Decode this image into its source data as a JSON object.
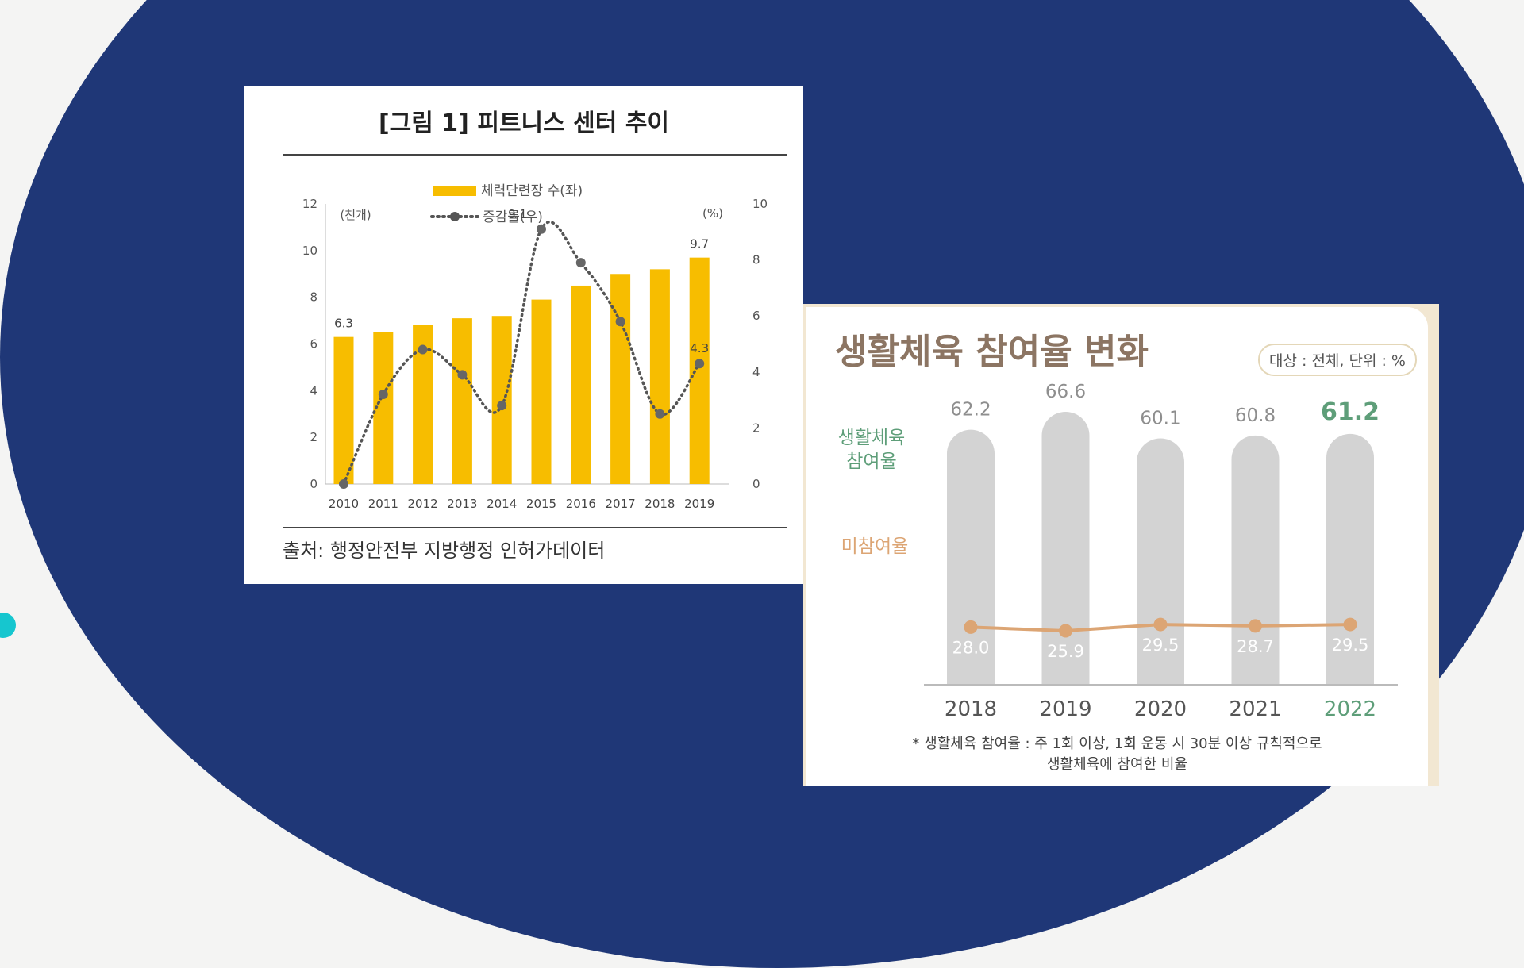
{
  "colors": {
    "background": "#f4f4f3",
    "ellipse": "#1f3777",
    "accent_dot": "#16c6cf",
    "bar_yellow": "#f7bd00",
    "line_dark": "#555555",
    "bar_gray": "#d3d3d3",
    "line_orange": "#dca574",
    "green": "#5e9e79",
    "title_brown": "#8c7563"
  },
  "chart_data": [
    {
      "type": "bar",
      "title": "[그림 1] 피트니스 센터 추이",
      "categories": [
        "2010",
        "2011",
        "2012",
        "2013",
        "2014",
        "2015",
        "2016",
        "2017",
        "2018",
        "2019"
      ],
      "series": [
        {
          "name": "체력단련장 수(좌)",
          "type": "bar",
          "axis": "left",
          "values": [
            6.3,
            6.5,
            6.8,
            7.1,
            7.2,
            7.9,
            8.5,
            9.0,
            9.2,
            9.7
          ]
        },
        {
          "name": "증감률(우)",
          "type": "line",
          "axis": "right",
          "values": [
            0,
            3.2,
            4.8,
            3.9,
            2.8,
            9.1,
            7.9,
            5.8,
            2.5,
            4.3
          ]
        }
      ],
      "data_labels": [
        {
          "series": 0,
          "index": 0,
          "text": "6.3"
        },
        {
          "series": 0,
          "index": 9,
          "text": "9.7"
        },
        {
          "series": 1,
          "index": 5,
          "text": "9.1"
        },
        {
          "series": 1,
          "index": 9,
          "text": "4.3"
        }
      ],
      "y_left": {
        "unit": "(천개)",
        "ticks": [
          "0",
          "2",
          "4",
          "6",
          "8",
          "10",
          "12"
        ],
        "range": [
          0,
          12
        ]
      },
      "y_right": {
        "unit": "(%)",
        "ticks": [
          "0",
          "2",
          "4",
          "6",
          "8",
          "10"
        ],
        "range": [
          0,
          10
        ]
      },
      "legend": "top-center",
      "source": "출처: 행정안전부 지방행정 인허가데이터"
    },
    {
      "type": "bar",
      "title": "생활체육 참여율 변화",
      "badge": "대상 : 전체, 단위 : %",
      "categories": [
        "2018",
        "2019",
        "2020",
        "2021",
        "2022"
      ],
      "highlight_index": 4,
      "series": [
        {
          "name": "생활체육 참여율",
          "type": "bar",
          "values": [
            62.2,
            66.6,
            60.1,
            60.8,
            61.2
          ]
        },
        {
          "name": "미참여율",
          "type": "line",
          "values": [
            28.0,
            25.9,
            29.5,
            28.7,
            29.5
          ]
        }
      ],
      "series_labels": [
        "생활체육",
        "참여율",
        "미참여율"
      ],
      "bar_labels": [
        "62.2",
        "66.6",
        "60.1",
        "60.8",
        "61.2"
      ],
      "line_labels": [
        "28.0",
        "25.9",
        "29.5",
        "28.7",
        "29.5"
      ],
      "footnote": [
        "* 생활체육 참여율 : 주 1회 이상, 1회 운동 시 30분 이상 규칙적으로",
        "생활체육에 참여한 비율"
      ],
      "legend": "left"
    }
  ]
}
